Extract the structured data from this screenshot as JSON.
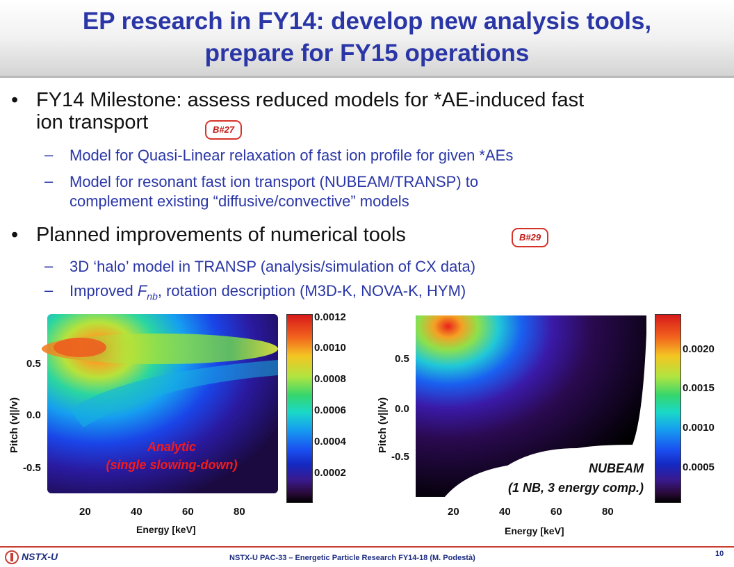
{
  "slide": {
    "title": "EP research in FY14: develop new analysis tools,\nprepare for FY15 operations",
    "bullets": [
      {
        "text": "FY14 Milestone: assess reduced models for *AE-induced fast\nion transport",
        "badge": "B#27"
      },
      {
        "text": "Planned improvements of numerical tools",
        "badge": "B#29"
      }
    ],
    "sub1": [
      "Model for Quasi-Linear relaxation of fast ion profile for given *AEs",
      "Model for resonant fast ion transport (NUBEAM/TRANSP) to\ncomplement existing “diffusive/convective” models"
    ],
    "sub2_line1": "3D ‘halo’ model in TRANSP (analysis/simulation of CX data)",
    "sub2_line2": {
      "pre": "Improved ",
      "F": "F",
      "sub": "nb",
      "post": ", rotation description (M3D-K, NOVA-K, HYM)"
    },
    "bullet_char": "•",
    "dash_char": "–"
  },
  "plots": {
    "left": {
      "ylabel": "Pitch (v||/v)",
      "xlabel": "Energy [keV]",
      "yticks": [
        "0.5",
        "0.0",
        "-0.5"
      ],
      "xticks": [
        "20",
        "40",
        "60",
        "80"
      ],
      "colorbar": [
        "0.0012",
        "0.0010",
        "0.0008",
        "0.0006",
        "0.0004",
        "0.0002"
      ],
      "annotation": "Analytic\n(single slowing-down)"
    },
    "right": {
      "ylabel": "Pitch (v||/v)",
      "xlabel": "Energy [keV]",
      "yticks": [
        "0.5",
        "0.0",
        "-0.5"
      ],
      "xticks": [
        "20",
        "40",
        "60",
        "80"
      ],
      "colorbar": [
        "0.0020",
        "0.0015",
        "0.0010",
        "0.0005"
      ],
      "annotation": "NUBEAM\n(1 NB, 3 energy comp.)"
    }
  },
  "footer": {
    "logo": "NSTX-U",
    "center": "NSTX-U PAC-33 – Energetic Particle Research FY14-18 (M. Podestà)",
    "page": "10"
  },
  "colors": {
    "title": "#2a36a6",
    "accent_red": "#d63328",
    "sub_text": "#2a36a6"
  }
}
